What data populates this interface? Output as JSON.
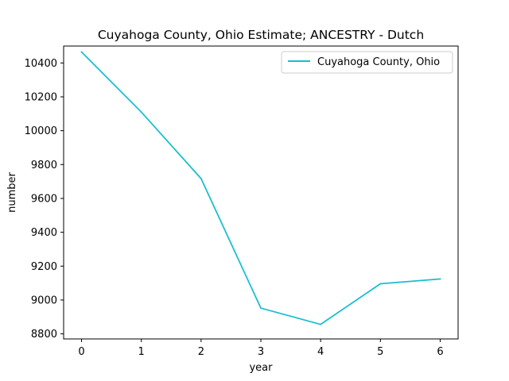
{
  "chart_data": {
    "type": "line",
    "title": "Cuyahoga County, Ohio Estimate; ANCESTRY - Dutch",
    "xlabel": "year",
    "ylabel": "number",
    "x": [
      0,
      1,
      2,
      3,
      4,
      5,
      6
    ],
    "xticks": [
      0,
      1,
      2,
      3,
      4,
      5,
      6
    ],
    "yticks": [
      8800,
      9000,
      9200,
      9400,
      9600,
      9800,
      10000,
      10200,
      10400
    ],
    "xlim": [
      -0.3,
      6.3
    ],
    "ylim": [
      8770,
      10500
    ],
    "grid": false,
    "legend_position": "top-right",
    "series": [
      {
        "name": "Cuyahoga County, Ohio",
        "color": "#17becf",
        "values": [
          10465,
          10110,
          9717,
          8952,
          8856,
          9096,
          9124
        ]
      }
    ]
  }
}
